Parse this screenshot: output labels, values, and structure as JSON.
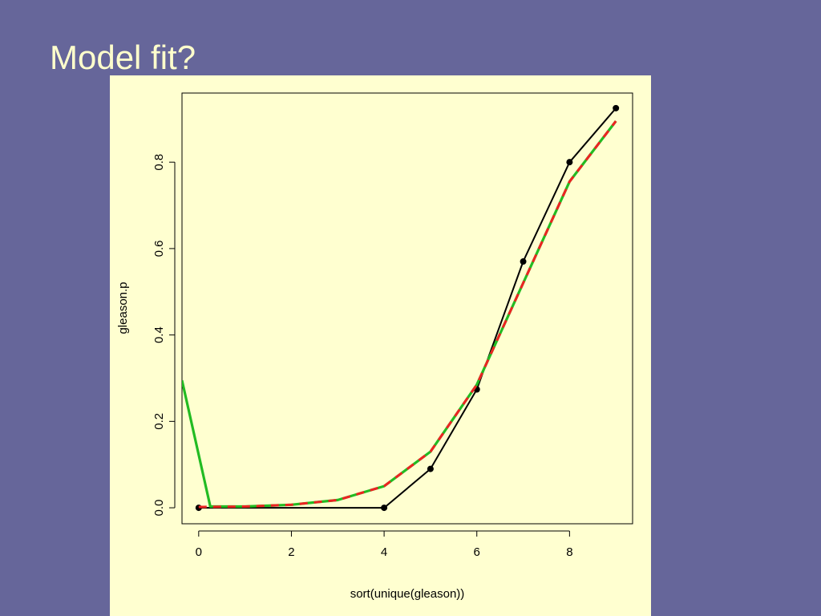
{
  "slide": {
    "title": "Model fit?",
    "background": "#66669a",
    "title_color": "#ffffcc",
    "panel_color": "#ffffd0"
  },
  "chart_data": {
    "type": "line",
    "title": "",
    "xlabel": "sort(unique(gleason))",
    "ylabel": "gleason.p",
    "xlim": [
      -0.36,
      9.36
    ],
    "ylim": [
      -0.037,
      0.96
    ],
    "xticks": [
      0,
      2,
      4,
      6,
      8
    ],
    "xtick_labels": [
      "0",
      "2",
      "4",
      "6",
      "8"
    ],
    "yticks": [
      0.0,
      0.2,
      0.4,
      0.6,
      0.8
    ],
    "ytick_labels": [
      "0.0",
      "0.2",
      "0.4",
      "0.6",
      "0.8"
    ],
    "grid": false,
    "legend": "none",
    "series": [
      {
        "style": "solid-with-points",
        "color": "#000000",
        "x": [
          0,
          4,
          5,
          6,
          7,
          8,
          9
        ],
        "y": [
          0.0,
          0.0,
          0.09,
          0.274,
          0.57,
          0.8,
          0.925
        ]
      },
      {
        "style": "solid",
        "color": "#22bb22",
        "x": [
          -0.36,
          0.25,
          1,
          2,
          3,
          4,
          5,
          6,
          7,
          8,
          9
        ],
        "y": [
          0.295,
          0.003,
          0.003,
          0.007,
          0.018,
          0.05,
          0.13,
          0.285,
          0.52,
          0.755,
          0.895
        ]
      },
      {
        "style": "dashed",
        "color": "#ee2222",
        "x": [
          0,
          1,
          2,
          3,
          4,
          5,
          6,
          7,
          8,
          9
        ],
        "y": [
          0.002,
          0.003,
          0.007,
          0.018,
          0.05,
          0.13,
          0.285,
          0.52,
          0.755,
          0.895
        ]
      }
    ]
  }
}
